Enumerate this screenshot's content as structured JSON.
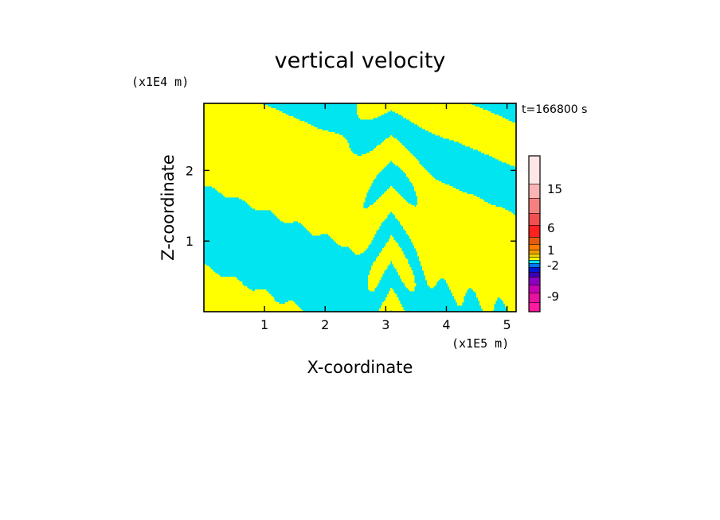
{
  "chart_data": {
    "type": "heatmap",
    "title": "vertical velocity",
    "xlabel": "X-coordinate",
    "ylabel": "Z-coordinate",
    "x_unit": "(x1E5 m)",
    "y_unit": "(x1E4 m)",
    "time_label": "t=166800 s",
    "xlim": [
      0,
      5.15
    ],
    "ylim": [
      0,
      2.95
    ],
    "x_ticks": [
      1,
      2,
      3,
      4,
      5
    ],
    "y_ticks": [
      1,
      2
    ],
    "x_tick_labels": [
      "1",
      "2",
      "3",
      "4",
      "5"
    ],
    "y_tick_labels": [
      "1",
      "2"
    ],
    "field_colors": {
      "negative": "#00e5f0",
      "positive": "#ffff00"
    },
    "colorbar": {
      "levels": [
        {
          "color": "#ff1aa0"
        },
        {
          "color": "#e6119e"
        },
        {
          "color": "#c800b4"
        },
        {
          "color": "#8a00c0"
        },
        {
          "color": "#3c00b4"
        },
        {
          "color": "#0018d6"
        },
        {
          "color": "#0078f0"
        },
        {
          "color": "#00e5f0"
        },
        {
          "color": "#ffff00"
        },
        {
          "color": "#f0d200"
        },
        {
          "color": "#f0a000"
        },
        {
          "color": "#ff7a00"
        },
        {
          "color": "#e65a10"
        },
        {
          "color": "#ff2020"
        },
        {
          "color": "#f05050"
        },
        {
          "color": "#f58080"
        },
        {
          "color": "#fab4b4"
        },
        {
          "color": "#ffe6e6"
        }
      ],
      "labels": [
        "-9",
        "-2",
        "1",
        "6",
        "15"
      ]
    }
  }
}
